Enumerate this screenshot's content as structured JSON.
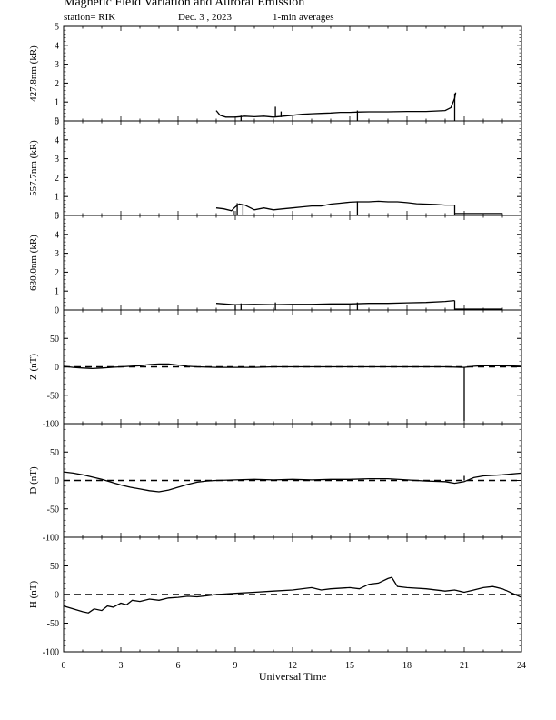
{
  "header": {
    "title": "Magnetic Field Variation and Auroral Emission",
    "station": "station= RIK",
    "date": "Dec. 3  , 2023",
    "averaging": "1-min averages"
  },
  "chart_data": {
    "type": "line",
    "xlabel": "Universal Time",
    "xlim": [
      0,
      24
    ],
    "xticks": [
      0,
      3,
      6,
      9,
      12,
      15,
      18,
      21,
      24
    ],
    "panels": [
      {
        "ylabel": "427.8nm (kR)",
        "ylim": [
          0,
          5
        ],
        "yticks": [
          0,
          1,
          2,
          3,
          4,
          5
        ],
        "zero_line": false,
        "series": [
          {
            "x": [
              8.0,
              8.2,
              8.5,
              9.0,
              9.5,
              10.0,
              10.5,
              11.0,
              11.5,
              12.0,
              12.5,
              13.0,
              13.5,
              14.0,
              14.5,
              15.0,
              15.5,
              16.0,
              17.0,
              18.0,
              19.0,
              20.0,
              20.3,
              20.5,
              20.55
            ],
            "y": [
              0.55,
              0.3,
              0.2,
              0.2,
              0.25,
              0.22,
              0.25,
              0.2,
              0.25,
              0.3,
              0.35,
              0.38,
              0.4,
              0.42,
              0.45,
              0.45,
              0.47,
              0.48,
              0.48,
              0.5,
              0.5,
              0.55,
              0.7,
              1.2,
              1.5
            ]
          }
        ],
        "spikes": [
          [
            9.3,
            0.0,
            0.28
          ],
          [
            11.1,
            0.2,
            0.75
          ],
          [
            11.4,
            0.2,
            0.5
          ],
          [
            15.4,
            0.0,
            0.55
          ],
          [
            20.5,
            0.0,
            1.45
          ]
        ]
      },
      {
        "ylabel": "557.7nm (kR)",
        "ylim": [
          0,
          5
        ],
        "yticks": [
          0,
          1,
          2,
          3,
          4,
          5
        ],
        "zero_line": false,
        "series": [
          {
            "x": [
              8.0,
              8.4,
              8.8,
              9.0,
              9.2,
              9.5,
              10.0,
              10.5,
              11.0,
              11.5,
              12.0,
              12.5,
              13.0,
              13.5,
              14.0,
              14.5,
              15.0,
              15.4,
              16.0,
              16.5,
              17.0,
              17.5,
              18.0,
              18.5,
              19.0,
              19.5,
              20.0,
              20.5
            ],
            "y": [
              0.4,
              0.35,
              0.25,
              0.45,
              0.6,
              0.55,
              0.3,
              0.4,
              0.3,
              0.35,
              0.4,
              0.45,
              0.5,
              0.5,
              0.6,
              0.65,
              0.7,
              0.72,
              0.72,
              0.75,
              0.72,
              0.72,
              0.68,
              0.62,
              0.6,
              0.58,
              0.55,
              0.55
            ]
          },
          {
            "x": [
              20.5,
              23.0
            ],
            "y": [
              0.1,
              0.1
            ]
          }
        ],
        "spikes": [
          [
            8.9,
            0.0,
            0.25
          ],
          [
            9.1,
            0.0,
            0.65
          ],
          [
            9.4,
            0.0,
            0.6
          ],
          [
            15.4,
            0.0,
            0.75
          ],
          [
            20.5,
            0.0,
            0.55
          ]
        ]
      },
      {
        "ylabel": "630.0nm (kR)",
        "ylim": [
          0,
          5
        ],
        "yticks": [
          0,
          1,
          2,
          3,
          4,
          5
        ],
        "zero_line": false,
        "series": [
          {
            "x": [
              8.0,
              9.0,
              10.0,
              11.0,
              12.0,
              13.0,
              14.0,
              15.0,
              16.0,
              17.0,
              18.0,
              19.0,
              20.0,
              20.5
            ],
            "y": [
              0.35,
              0.28,
              0.3,
              0.28,
              0.3,
              0.3,
              0.32,
              0.32,
              0.35,
              0.35,
              0.38,
              0.4,
              0.45,
              0.5
            ]
          },
          {
            "x": [
              20.5,
              23.0
            ],
            "y": [
              0.05,
              0.05
            ]
          }
        ],
        "spikes": [
          [
            9.0,
            0.0,
            0.3
          ],
          [
            9.3,
            0.0,
            0.35
          ],
          [
            11.1,
            0.0,
            0.4
          ],
          [
            15.4,
            0.0,
            0.4
          ],
          [
            20.5,
            0.0,
            0.5
          ]
        ]
      },
      {
        "ylabel": "Z (nT)",
        "ylim": [
          -100,
          100
        ],
        "yticks": [
          -100,
          -50,
          0,
          50
        ],
        "zero_line": true,
        "series": [
          {
            "x": [
              0,
              0.5,
              1.0,
              1.5,
              2.0,
              2.5,
              3.0,
              3.5,
              4.0,
              4.5,
              5.0,
              5.5,
              6.0,
              6.5,
              7.0,
              8.0,
              9.0,
              10.0,
              11.0,
              12.0,
              13.0,
              14.0,
              15.0,
              16.0,
              17.0,
              18.0,
              19.0,
              20.0,
              21.0,
              21.5,
              22.0,
              23.0,
              24.0
            ],
            "y": [
              1,
              -1,
              -2,
              -3,
              -2,
              -1,
              0,
              1,
              2,
              4,
              5,
              5,
              3,
              1,
              0,
              -1,
              -1,
              -1,
              0,
              0,
              0,
              0,
              0,
              0,
              0,
              0,
              0,
              0,
              -1,
              1,
              2,
              2,
              1
            ]
          }
        ],
        "spikes": [
          [
            21.0,
            0.0,
            -95
          ]
        ]
      },
      {
        "ylabel": "D (nT)",
        "ylim": [
          -100,
          100
        ],
        "yticks": [
          -100,
          -50,
          0,
          50
        ],
        "zero_line": true,
        "series": [
          {
            "x": [
              0,
              0.5,
              1.0,
              1.5,
              2.0,
              2.5,
              3.0,
              3.5,
              4.0,
              4.5,
              5.0,
              5.5,
              6.0,
              6.5,
              7.0,
              7.5,
              8.0,
              9.0,
              10.0,
              11.0,
              12.0,
              13.0,
              14.0,
              15.0,
              16.0,
              17.0,
              18.0,
              19.0,
              20.0,
              20.5,
              21.0,
              21.5,
              22.0,
              23.0,
              24.0
            ],
            "y": [
              15,
              13,
              10,
              6,
              2,
              -3,
              -8,
              -12,
              -15,
              -18,
              -20,
              -17,
              -12,
              -7,
              -3,
              -1,
              0,
              1,
              2,
              1,
              2,
              1,
              2,
              2,
              3,
              3,
              1,
              -1,
              -2,
              -5,
              -2,
              5,
              8,
              10,
              13
            ]
          }
        ],
        "spikes": [
          [
            21.0,
            0.0,
            8
          ]
        ]
      },
      {
        "ylabel": "H (nT)",
        "ylim": [
          -100,
          100
        ],
        "yticks": [
          -100,
          -50,
          0,
          50
        ],
        "zero_line": true,
        "series": [
          {
            "x": [
              0,
              0.5,
              1.0,
              1.3,
              1.6,
              2.0,
              2.3,
              2.6,
              3.0,
              3.3,
              3.6,
              4.0,
              4.5,
              5.0,
              5.5,
              6.0,
              6.5,
              7.0,
              7.5,
              8.0,
              9.0,
              10.0,
              11.0,
              12.0,
              13.0,
              13.5,
              14.0,
              15.0,
              15.5,
              16.0,
              16.5,
              17.0,
              17.2,
              17.5,
              18.0,
              19.0,
              20.0,
              20.5,
              21.0,
              21.5,
              22.0,
              22.5,
              23.0,
              24.0
            ],
            "y": [
              -20,
              -25,
              -30,
              -32,
              -25,
              -28,
              -20,
              -22,
              -15,
              -18,
              -10,
              -12,
              -8,
              -10,
              -6,
              -5,
              -3,
              -4,
              -2,
              0,
              2,
              4,
              6,
              8,
              12,
              8,
              10,
              12,
              10,
              18,
              20,
              28,
              30,
              14,
              12,
              10,
              6,
              8,
              4,
              8,
              12,
              14,
              10,
              -5
            ]
          }
        ],
        "spikes": []
      }
    ]
  }
}
